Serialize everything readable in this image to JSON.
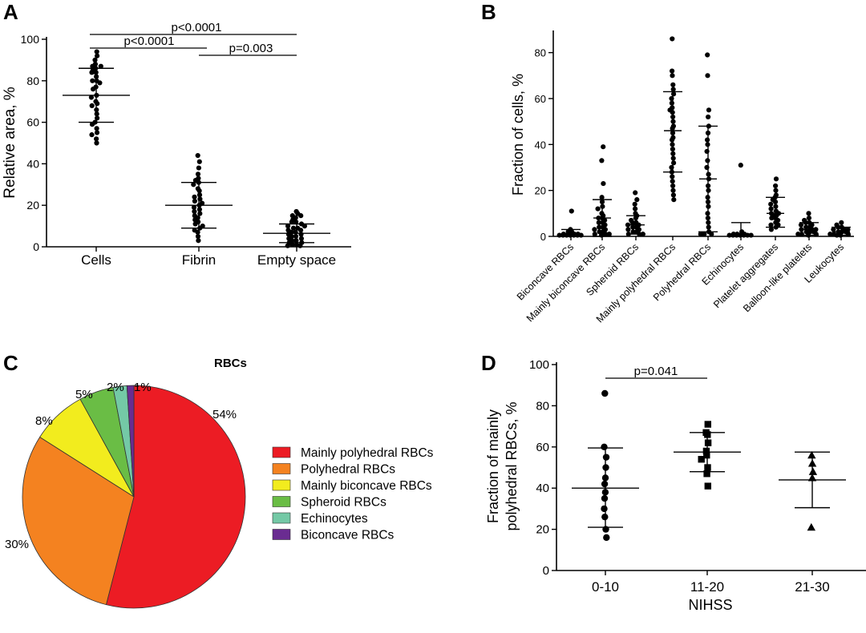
{
  "panels": {
    "A": "A",
    "B": "B",
    "C": "C",
    "D": "D"
  },
  "chart_data": [
    {
      "panel": "A",
      "type": "scatter",
      "ylabel": "Relative area, %",
      "xlabel": "",
      "ylim": [
        0,
        100
      ],
      "yticks": [
        "0",
        "20",
        "40",
        "60",
        "80",
        "100"
      ],
      "categories": [
        "Cells",
        "Fibrin",
        "Empty space"
      ],
      "groups": [
        {
          "name": "Cells",
          "mean": 73,
          "sd_low": 60,
          "sd_high": 86,
          "points": [
            94,
            92,
            90,
            88,
            87,
            87,
            86,
            85,
            84,
            84,
            82,
            80,
            80,
            79,
            77,
            76,
            73,
            72,
            70,
            69,
            68,
            66,
            64,
            62,
            60,
            59,
            57,
            55,
            54,
            52,
            50
          ]
        },
        {
          "name": "Fibrin",
          "mean": 20,
          "sd_low": 9,
          "sd_high": 31,
          "points": [
            44,
            41,
            38,
            35,
            33,
            32,
            31,
            30,
            28,
            27,
            25,
            24,
            23,
            22,
            21,
            20,
            19,
            18,
            17,
            16,
            15,
            14,
            13,
            12,
            11,
            10,
            9,
            8,
            7,
            5,
            3
          ]
        },
        {
          "name": "Empty space",
          "mean": 6.5,
          "sd_low": 2,
          "sd_high": 11,
          "points": [
            17,
            16,
            15,
            15,
            14,
            13,
            12,
            12,
            11,
            10,
            10,
            9,
            9,
            8,
            8,
            7,
            7,
            6,
            6,
            5,
            5,
            4,
            4,
            3,
            3,
            2,
            2,
            1,
            1,
            0.5,
            0.5
          ]
        }
      ],
      "annotations": [
        {
          "text": "p<0.0001",
          "from": "Cells",
          "to": "Empty space"
        },
        {
          "text": "p<0.0001",
          "from": "Cells",
          "to": "Fibrin"
        },
        {
          "text": "p=0.003",
          "from": "Fibrin",
          "to": "Empty space"
        }
      ]
    },
    {
      "panel": "B",
      "type": "scatter",
      "ylabel": "Fraction of cells, %",
      "xlabel": "",
      "ylim": [
        0,
        90
      ],
      "yticks": [
        "0",
        "20",
        "40",
        "60",
        "80"
      ],
      "categories": [
        "Biconcave RBCs",
        "Mainly biconcave RBCs",
        "Spheroid RBCs",
        "Mainly polyhedral RBCs",
        "Polyhedral RBCs",
        "Echinocytes",
        "Platelet aggregates",
        "Balloon-like platelets",
        "Leukocytes"
      ],
      "groups": [
        {
          "name": "Biconcave RBCs",
          "mean": 1,
          "sd_low": 0,
          "sd_high": 3,
          "points": [
            11,
            3,
            2,
            2,
            1,
            1,
            1,
            0.5,
            0.5,
            0.5,
            0.5,
            0.5,
            0.5,
            0.5
          ]
        },
        {
          "name": "Mainly biconcave RBCs",
          "mean": 8,
          "sd_low": 0,
          "sd_high": 16,
          "points": [
            39,
            33,
            23,
            17,
            15,
            13,
            12,
            10,
            9,
            8,
            8,
            7,
            6,
            6,
            5,
            4,
            4,
            3,
            3,
            2,
            2,
            1,
            1,
            1,
            0.5
          ]
        },
        {
          "name": "Spheroid RBCs",
          "mean": 5,
          "sd_low": 1,
          "sd_high": 9,
          "points": [
            19,
            16,
            14,
            12,
            10,
            9,
            8,
            7,
            6,
            6,
            5,
            5,
            4,
            4,
            3,
            3,
            2,
            2,
            1,
            1,
            1
          ]
        },
        {
          "name": "Mainly polyhedral RBCs",
          "mean": 46,
          "sd_low": 28,
          "sd_high": 63,
          "points": [
            86,
            72,
            70,
            66,
            64,
            62,
            60,
            58,
            56,
            55,
            54,
            52,
            50,
            48,
            47,
            45,
            43,
            42,
            40,
            38,
            36,
            34,
            32,
            30,
            28,
            26,
            24,
            22,
            20,
            18,
            16
          ]
        },
        {
          "name": "Polyhedral RBCs",
          "mean": 25,
          "sd_low": 2,
          "sd_high": 48,
          "points": [
            79,
            70,
            55,
            52,
            48,
            45,
            42,
            40,
            37,
            33,
            30,
            27,
            25,
            22,
            20,
            17,
            15,
            13,
            10,
            8,
            6,
            4,
            2,
            1,
            1,
            1
          ]
        },
        {
          "name": "Echinocytes",
          "mean": 1,
          "sd_low": 0,
          "sd_high": 6,
          "points": [
            31,
            2,
            1,
            1,
            1,
            0.5,
            0.5,
            0.5,
            0.5,
            0.5,
            0.5,
            0.5
          ]
        },
        {
          "name": "Platelet aggregates",
          "mean": 10,
          "sd_low": 4,
          "sd_high": 17,
          "points": [
            25,
            22,
            20,
            18,
            17,
            16,
            15,
            14,
            13,
            12,
            11,
            10,
            10,
            9,
            9,
            8,
            8,
            7,
            6,
            5,
            5,
            4,
            3
          ]
        },
        {
          "name": "Balloon-like platelets",
          "mean": 3,
          "sd_low": 0.5,
          "sd_high": 6,
          "points": [
            10,
            8,
            7,
            6,
            6,
            5,
            5,
            4,
            4,
            3,
            3,
            3,
            2,
            2,
            2,
            1,
            1,
            1,
            0.5
          ]
        },
        {
          "name": "Leukocytes",
          "mean": 2,
          "sd_low": 0.5,
          "sd_high": 4,
          "points": [
            6,
            5,
            4,
            4,
            3,
            3,
            3,
            2,
            2,
            2,
            1,
            1,
            1,
            0.5,
            0.5
          ]
        }
      ]
    },
    {
      "panel": "C",
      "type": "pie",
      "title": "RBCs",
      "slices": [
        {
          "label": "Mainly polyhedral RBCs",
          "value": 54,
          "text": "54%",
          "color": "#ec1c24"
        },
        {
          "label": "Polyhedral RBCs",
          "value": 30,
          "text": "30%",
          "color": "#f48220"
        },
        {
          "label": "Mainly biconcave RBCs",
          "value": 8,
          "text": "8%",
          "color": "#f2ec1e"
        },
        {
          "label": "Spheroid RBCs",
          "value": 5,
          "text": "5%",
          "color": "#6abd45"
        },
        {
          "label": "Echinocytes",
          "value": 2,
          "text": "2%",
          "color": "#74c9a6"
        },
        {
          "label": "Biconcave RBCs",
          "value": 1,
          "text": "1%",
          "color": "#6a2c91"
        }
      ],
      "legend_position": "right"
    },
    {
      "panel": "D",
      "type": "scatter",
      "ylabel": "Fraction of mainly polyhedral RBCs, %",
      "ylabel_lines": [
        "Fraction of mainly",
        "polyhedral RBCs, %"
      ],
      "xlabel": "NIHSS",
      "ylim": [
        0,
        100
      ],
      "yticks": [
        "0",
        "20",
        "40",
        "60",
        "80",
        "100"
      ],
      "categories": [
        "0-10",
        "11-20",
        "21-30"
      ],
      "groups": [
        {
          "name": "0-10",
          "marker": "circle",
          "mean": 40,
          "sd_low": 21,
          "sd_high": 59.5,
          "points": [
            86,
            60,
            55,
            50,
            45,
            42,
            38,
            35,
            30,
            26,
            20,
            16
          ]
        },
        {
          "name": "11-20",
          "marker": "square",
          "mean": 57.5,
          "sd_low": 48,
          "sd_high": 67,
          "points": [
            71,
            67,
            66,
            62,
            58,
            56,
            54,
            50,
            47,
            41
          ]
        },
        {
          "name": "21-30",
          "marker": "triangle",
          "mean": 44,
          "sd_low": 30.5,
          "sd_high": 57.5,
          "points": [
            56,
            52,
            48,
            45,
            21
          ]
        }
      ],
      "annotations": [
        {
          "text": "p=0.041",
          "from": "0-10",
          "to": "11-20"
        }
      ]
    }
  ]
}
